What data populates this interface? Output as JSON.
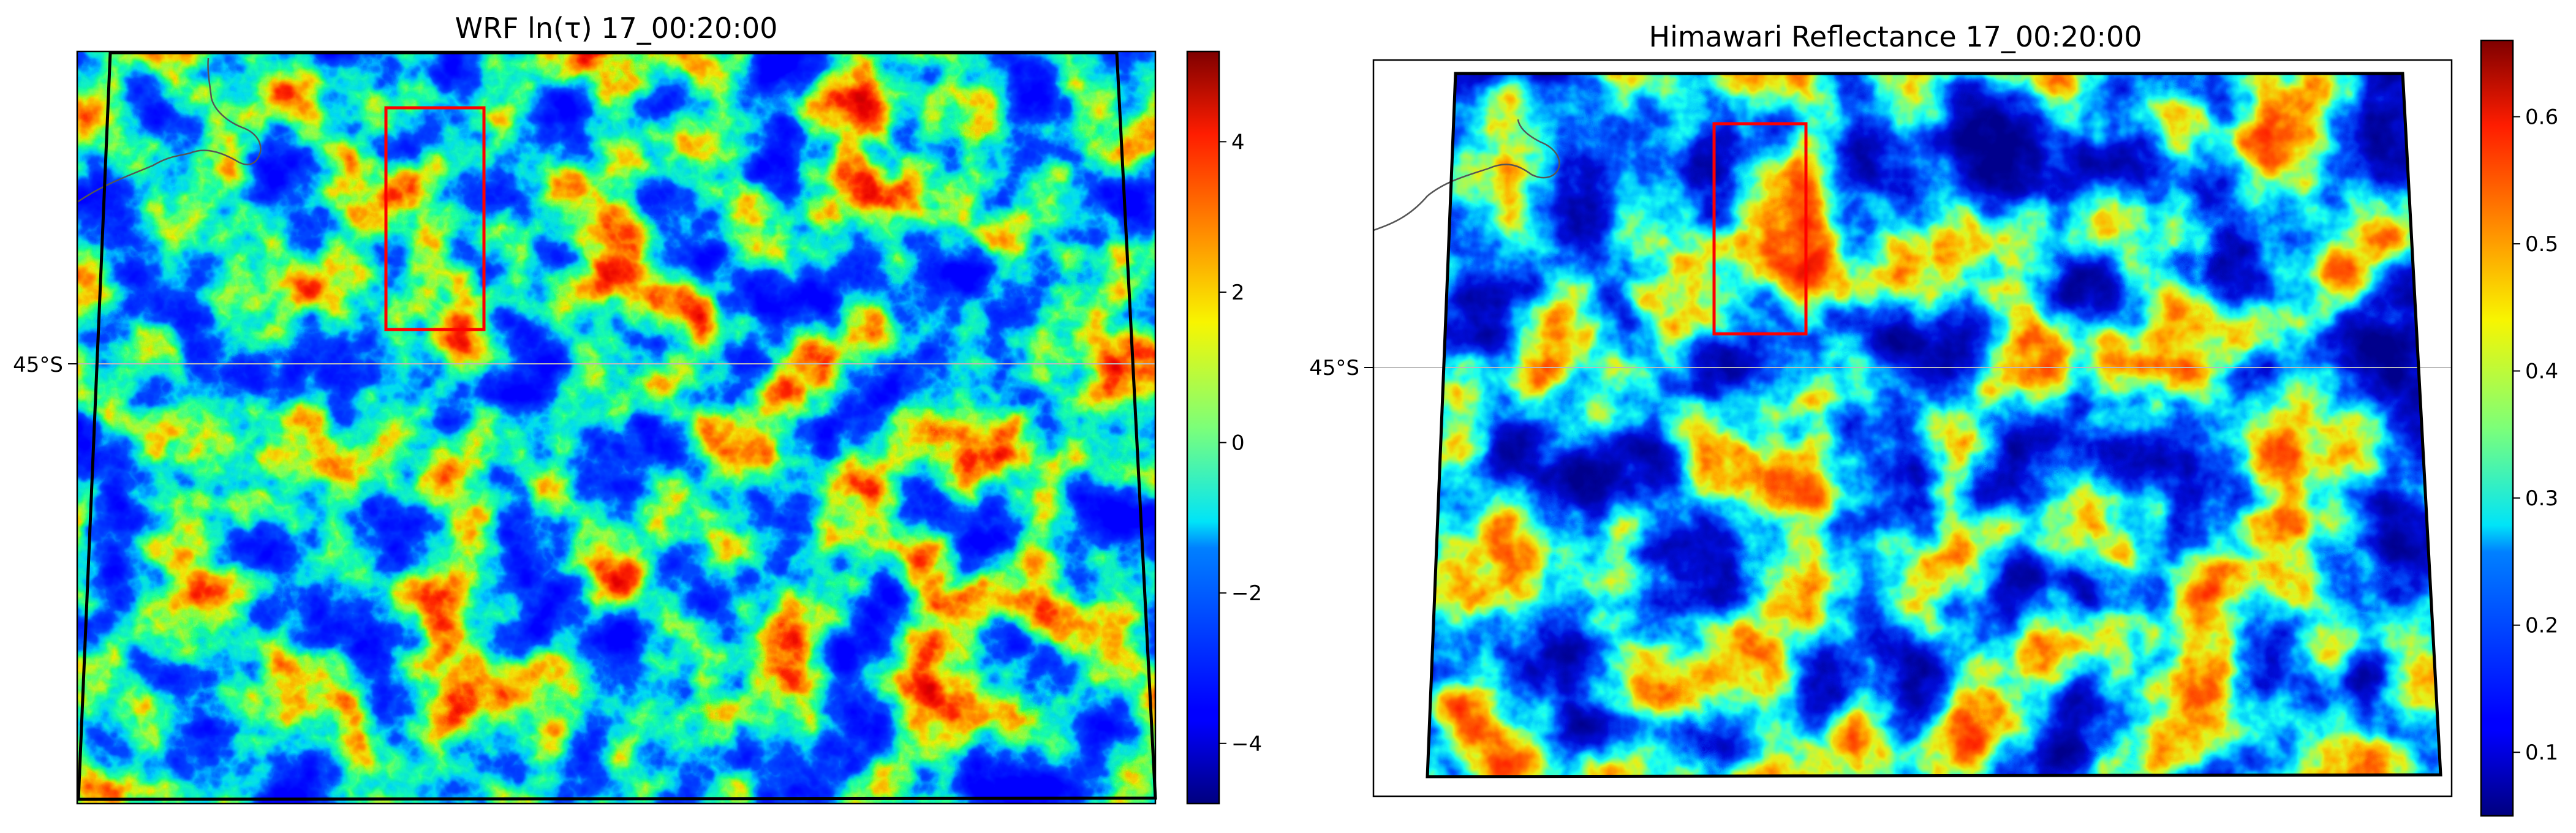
{
  "panels": [
    {
      "title": "WRF ln(τ) 17_00:20:00",
      "lat_label": "45°S",
      "colorbar": {
        "colormap": "jet",
        "range": [
          -4.8,
          5.2
        ],
        "ticks": [
          "−4",
          "−2",
          "0",
          "2",
          "4"
        ]
      }
    },
    {
      "title": "Himawari Reflectance 17_00:20:00",
      "lat_label": "45°S",
      "colorbar": {
        "colormap": "jet",
        "range": [
          0.05,
          0.66
        ],
        "ticks": [
          "0.1",
          "0.2",
          "0.3",
          "0.4",
          "0.5",
          "0.6"
        ]
      }
    }
  ],
  "colors": {
    "domain_outline": "#000000",
    "highlight_box": "#ff0000",
    "coastline": "#555555",
    "gridline": "#bbbbbb"
  }
}
